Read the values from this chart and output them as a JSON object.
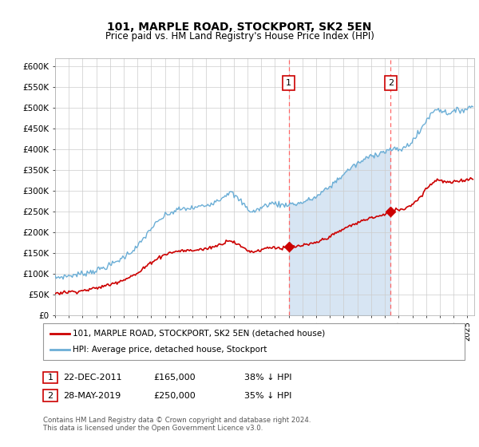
{
  "title": "101, MARPLE ROAD, STOCKPORT, SK2 5EN",
  "subtitle": "Price paid vs. HM Land Registry's House Price Index (HPI)",
  "ylim": [
    0,
    620000
  ],
  "yticks": [
    0,
    50000,
    100000,
    150000,
    200000,
    250000,
    300000,
    350000,
    400000,
    450000,
    500000,
    550000,
    600000
  ],
  "ytick_labels": [
    "£0",
    "£50K",
    "£100K",
    "£150K",
    "£200K",
    "£250K",
    "£300K",
    "£350K",
    "£400K",
    "£450K",
    "£500K",
    "£550K",
    "£600K"
  ],
  "xlim_start": 1995.0,
  "xlim_end": 2025.5,
  "hpi_color": "#6baed6",
  "hpi_fill_color": "#c6dbef",
  "price_color": "#cc0000",
  "marker_color": "#cc0000",
  "vline_color": "#ff6666",
  "bg_color": "#ffffff",
  "sale1_x": 2012.0,
  "sale1_y": 165000,
  "sale2_x": 2019.42,
  "sale2_y": 250000,
  "legend_line1": "101, MARPLE ROAD, STOCKPORT, SK2 5EN (detached house)",
  "legend_line2": "HPI: Average price, detached house, Stockport",
  "ann1_date": "22-DEC-2011",
  "ann1_price": "£165,000",
  "ann1_pct": "38% ↓ HPI",
  "ann2_date": "28-MAY-2019",
  "ann2_price": "£250,000",
  "ann2_pct": "35% ↓ HPI",
  "footer": "Contains HM Land Registry data © Crown copyright and database right 2024.\nThis data is licensed under the Open Government Licence v3.0."
}
